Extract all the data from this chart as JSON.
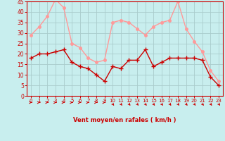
{
  "x": [
    0,
    1,
    2,
    3,
    4,
    5,
    6,
    7,
    8,
    9,
    10,
    11,
    12,
    13,
    14,
    15,
    16,
    17,
    18,
    19,
    20,
    21,
    22,
    23
  ],
  "wind_avg": [
    18,
    20,
    20,
    21,
    22,
    16,
    14,
    13,
    10,
    7,
    14,
    13,
    17,
    17,
    22,
    14,
    16,
    18,
    18,
    18,
    18,
    17,
    9,
    5
  ],
  "wind_gust": [
    29,
    33,
    38,
    46,
    42,
    25,
    23,
    18,
    16,
    17,
    35,
    36,
    35,
    32,
    29,
    33,
    35,
    36,
    45,
    32,
    26,
    21,
    12,
    7
  ],
  "avg_color": "#cc0000",
  "gust_color": "#ff9999",
  "bg_color": "#c8eeee",
  "grid_color": "#aacccc",
  "xlabel": "Vent moyen/en rafales ( km/h )",
  "ylim": [
    0,
    45
  ],
  "yticks": [
    0,
    5,
    10,
    15,
    20,
    25,
    30,
    35,
    40,
    45
  ],
  "xticks": [
    0,
    1,
    2,
    3,
    4,
    5,
    6,
    7,
    8,
    9,
    10,
    11,
    12,
    13,
    14,
    15,
    16,
    17,
    18,
    19,
    20,
    21,
    22,
    23
  ],
  "tick_color": "#cc0000",
  "label_color": "#cc0000",
  "axis_color": "#cc0000",
  "marker_size": 2.5,
  "linewidth": 1.0,
  "arrow_dirs": [
    0,
    0,
    0,
    0,
    0,
    0,
    0,
    0,
    0,
    0,
    -45,
    -45,
    -45,
    -45,
    -45,
    -45,
    -45,
    -45,
    -45,
    -45,
    -45,
    -45,
    -45,
    -45
  ]
}
